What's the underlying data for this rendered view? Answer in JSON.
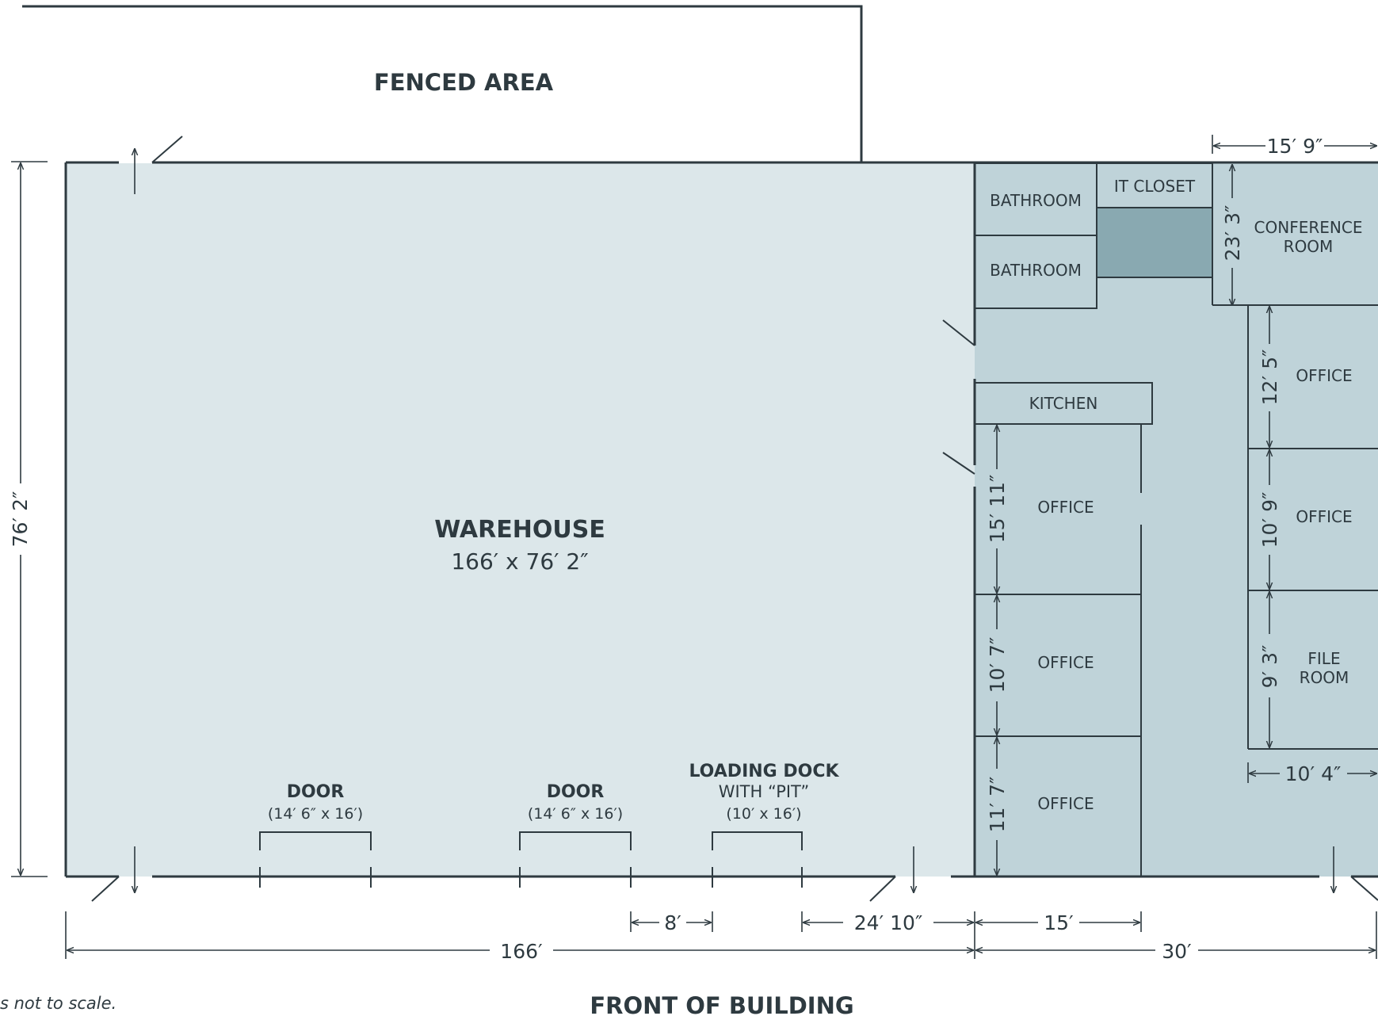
{
  "colors": {
    "warehouse_fill": "#dce7ea",
    "office_fill": "#bfd3d9",
    "it_block_fill": "#89a9b1",
    "line": "#2e3a40"
  },
  "fenced_area": "FENCED AREA",
  "warehouse": {
    "name": "WAREHOUSE",
    "size": "166′ x 76′ 2″"
  },
  "rooms": {
    "bathroom_1": "BATHROOM",
    "bathroom_2": "BATHROOM",
    "it_closet": "IT CLOSET",
    "conference_line1": "CONFERENCE",
    "conference_line2": "ROOM",
    "kitchen": "KITCHEN",
    "office_left_1": "OFFICE",
    "office_left_2": "OFFICE",
    "office_left_3": "OFFICE",
    "office_right_1": "OFFICE",
    "office_right_2": "OFFICE",
    "file_room_line1": "FILE",
    "file_room_line2": "ROOM"
  },
  "doors": {
    "door_1": {
      "title": "DOOR",
      "size": "(14′ 6″ x 16′)"
    },
    "door_2": {
      "title": "DOOR",
      "size": "(14′ 6″ x 16′)"
    },
    "loading_dock": {
      "title": "LOADING DOCK",
      "subtitle": "WITH “PIT”",
      "size": "(10′ x 16′)"
    }
  },
  "dimensions": {
    "conference_width": "15′ 9″",
    "building_height": "76′ 2″",
    "conference_height": "23′ 3″",
    "office_right_1_height": "12′ 5″",
    "office_right_2_height": "10′ 9″",
    "file_room_height": "9′ 3″",
    "office_left_1_height": "15′ 11″",
    "office_left_2_height": "10′ 7″",
    "office_left_3_height": "11′ 7″",
    "file_room_width": "10′ 4″",
    "dock_gap": "8′",
    "dock_to_office": "24′ 10″",
    "office_width": "15′",
    "warehouse_length": "166′",
    "office_section_length": "30′"
  },
  "footer": {
    "front": "FRONT OF BUILDING",
    "note": "s not to scale."
  }
}
